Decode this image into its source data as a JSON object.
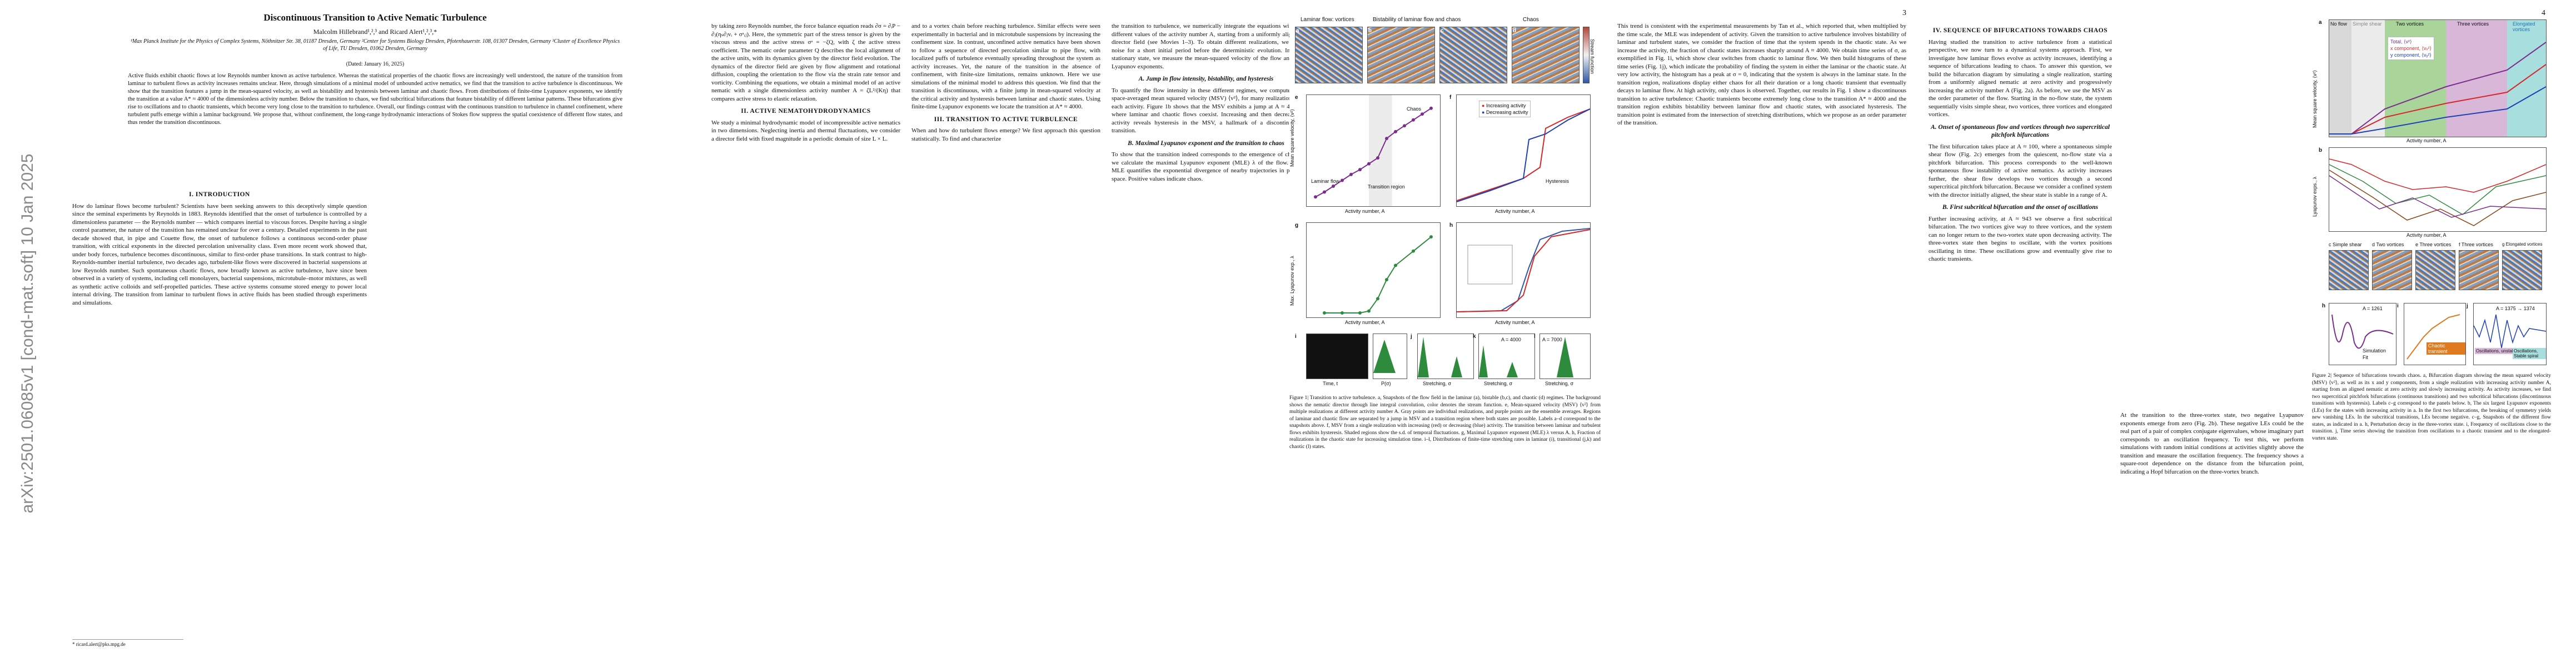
{
  "sidebar": {
    "arxiv_id": "arXiv:2501.06085v1  [cond-mat.soft]  10 Jan 2025"
  },
  "page1": {
    "title": "Discontinuous Transition to Active Nematic Turbulence",
    "authors": "Malcolm Hillebrand¹,²,³ and Ricard Alert¹,²,³,*",
    "affiliations": "¹Max Planck Institute for the Physics of Complex Systems, Nöthnitzer Str. 38, 01187 Dresden, Germany   ²Center for Systems Biology Dresden, Pfotenhauerstr. 108, 01307 Dresden, Germany   ³Cluster of Excellence Physics of Life, TU Dresden, 01062 Dresden, Germany",
    "date": "(Dated: January 16, 2025)",
    "abstract": "Active fluids exhibit chaotic flows at low Reynolds number known as active turbulence. Whereas the statistical properties of the chaotic flows are increasingly well understood, the nature of the transition from laminar to turbulent flows as activity increases remains unclear. Here, through simulations of a minimal model of unbounded active nematics, we find that the transition to active turbulence is discontinuous. We show that the transition features a jump in the mean-squared velocity, as well as bistability and hysteresis between laminar and chaotic flows. From distributions of finite-time Lyapunov exponents, we identify the transition at a value A* ≈ 4000 of the dimensionless activity number. Below the transition to chaos, we find subcritical bifurcations that feature bistability of different laminar patterns. These bifurcations give rise to oscillations and to chaotic transients, which become very long close to the transition to turbulence. Overall, our findings contrast with the continuous transition to turbulence in channel confinement, where turbulent puffs emerge within a laminar background. We propose that, without confinement, the long-range hydrodynamic interactions of Stokes flow suppress the spatial coexistence of different flow states, and thus render the transition discontinuous.",
    "sec_intro": "I.  INTRODUCTION",
    "col1_text": "How do laminar flows become turbulent? Scientists have been seeking answers to this deceptively simple question since the seminal experiments by Reynolds in 1883. Reynolds identified that the onset of turbulence is controlled by a dimensionless parameter — the Reynolds number — which compares inertial to viscous forces. Despite having a single control parameter, the nature of the transition has remained unclear for over a century. Detailed experiments in the past decade showed that, in pipe and Couette flow, the onset of turbulence follows a continuous second-order phase transition, with critical exponents in the directed percolation universality class. Even more recent work showed that, under body forces, turbulence becomes discontinuous, similar to first-order phase transitions. In stark contrast to high-Reynolds-number inertial turbulence, two decades ago, turbulent-like flows were discovered in bacterial suspensions at low Reynolds number. Such spontaneous chaotic flows, now broadly known as active turbulence, have since been observed in a variety of systems, including cell monolayers, bacterial suspensions, microtubule–motor mixtures, as well as synthetic active colloids and self-propelled particles. These active systems consume stored energy to power local internal driving. The transition from laminar to turbulent flows in active fluids has been studied through experiments and simulations."
  },
  "page2": {
    "page_number": "2",
    "col1_text": "by taking zero Reynolds number, the force balance equation reads ∂σ = ∂ᵢP − ∂ⱼ(ηₛ∂ⱼvᵢ + σᵃᵢⱼ). Here, the symmetric part of the stress tensor is given by the viscous stress and the active stress σᵃ = −ζQ, with ζ the active stress coefficient. The nematic order parameter Q describes the local alignment of the active units, with its dynamics given by the director field evolution. The dynamics of the director field are given by flow alignment and rotational diffusion, coupling the orientation to the flow via the strain rate tensor and vorticity. Combining the equations, we obtain a minimal model of an active nematic with a single dimensionless activity number A = ζL²/(Kη) that compares active stress to elastic relaxation.",
    "sec_model": "II.  ACTIVE NEMATOHYDRODYNAMICS",
    "col1_b": "We study a minimal hydrodynamic model of incompressible active nematics in two dimensions. Neglecting inertia and thermal fluctuations, we consider a director field with fixed magnitude in a periodic domain of size L × L.",
    "col2_text": "and to a vortex chain before reaching turbulence. Similar effects were seen experimentally in bacterial and in microtubule suspensions by increasing the confinement size. In contrast, unconfined active nematics have been shown to follow a sequence of directed percolation similar to pipe flow, with localized puffs of turbulence eventually spreading throughout the system as activity increases. Yet, the nature of the transition in the absence of confinement, with finite-size limitations, remains unknown. Here we use simulations of the minimal model to address this question. We find that the transition is discontinuous, with a finite jump in mean-squared velocity at the critical activity and hysteresis between laminar and chaotic states. Using finite-time Lyapunov exponents we locate the transition at A* ≈ 4000.",
    "col3_text": "the transition to turbulence, we numerically integrate the equations with at different values of the activity number A, starting from a uniformly aligned director field (see Movies 1–3). To obtain different realizations, we add noise for a short initial period before the deterministic evolution. In the stationary state, we measure the mean-squared velocity of the flow and its Lyapunov exponents.",
    "subsec_a": "A.  Jump in flow intensity, bistability, and hysteresis",
    "col3_b": "To quantify the flow intensity in these different regimes, we compute the space-averaged mean squared velocity (MSV) ⟨v²⟩, for many realizations at each activity. Figure 1b shows that the MSV exhibits a jump at A ≈ 4000, where laminar and chaotic flows coexist. Increasing and then decreasing activity reveals hysteresis in the MSV, a hallmark of a discontinuous transition.",
    "subsec_b": "B.  Maximal Lyapunov exponent and the transition to chaos",
    "col3_c": "To show that the transition indeed corresponds to the emergence of chaos, we calculate the maximal Lyapunov exponent (MLE) λ of the flow. The MLE quantifies the exponential divergence of nearby trajectories in phase space. Positive values indicate chaos.",
    "sec_iii": "III.  TRANSITION TO ACTIVE TURBULENCE",
    "col2_c": "When and how do turbulent flows emerge? We first approach this question statistically. To find and characterize"
  },
  "page3": {
    "page_number": "3",
    "panel_titles": [
      "Laminar flow: vortices",
      "Bistability of laminar flow and chaos",
      "Chaos"
    ],
    "panel_labels": [
      "a",
      "b",
      "c",
      "d",
      "e",
      "f",
      "g",
      "h",
      "i",
      "j",
      "k",
      "l"
    ],
    "stream_fn_label": "Stream function",
    "region_labels": [
      "Laminar flow",
      "Transition region",
      "Chaos",
      "Hysteresis"
    ],
    "legend_f": [
      "Increasing activity",
      "Decreasing activity"
    ],
    "ylabel_e": "Mean square velocity, ⟨v²⟩",
    "ylabel_g": "Max. Lyapunov exp., λ",
    "ylabel_h": "Fraction in chaotic state",
    "xlabel_activity": "Activity number, A",
    "xlabel_time": "Time, t",
    "xlabel_stretching": "Stretching, σ",
    "xlabel_ps": "P(σ)",
    "k_annot": "A = 4000",
    "l_annot": "A = 7000",
    "caption": "Figure 1| Transition to active turbulence. a, Snapshots of the flow field in the laminar (a), bistable (b,c), and chaotic (d) regimes. The background shows the nematic director through line integral convolution, color denotes the stream function. e, Mean-squared velocity (MSV) ⟨v²⟩ from multiple realizations at different activity number A. Gray points are individual realizations, and purple points are the ensemble averages. Regions of laminar and chaotic flow are separated by a jump in MSV and a transition region where both states are possible. Labels a–d correspond to the snapshots above. f, MSV from a single realization with increasing (red) or decreasing (blue) activity. The transition between laminar and turbulent flows exhibits hysteresis. Shaded regions show the s.d. of temporal fluctuations. g, Maximal Lyapunov exponent (MLE) λ versus A. h, Fraction of realizations in the chaotic state for increasing simulation time. i–l, Distributions of finite-time stretching rates in laminar (i), transitional (j,k) and chaotic (l) states."
  },
  "page3_text": {
    "col_text": "This trend is consistent with the experimental measurements by Tan et al., which reported that, when multiplied by the time scale, the MLE was independent of activity. Given the transition to active turbulence involves bistability of laminar and turbulent states, we consider the fraction of time that the system spends in the chaotic state. As we increase the activity, the fraction of chaotic states increases sharply around A ≈ 4000. We obtain time series of σ, as exemplified in Fig. 1i, which show clear switches from chaotic to laminar flow. We then build histograms of these time series (Fig. 1j), which indicate the probability of finding the system in either the laminar or the chaotic state. At very low activity, the histogram has a peak at σ = 0, indicating that the system is always in the laminar state. In the transition region, realizations display either chaos for all their duration or a long chaotic transient that eventually decays to laminar flow. At high activity, only chaos is observed. Together, our results in Fig. 1 show a discontinuous transition to active turbulence: Chaotic transients become extremely long close to the transition A* ≈ 4000 and the transition region exhibits bistability between laminar flow and chaotic states, with associated hysteresis. The transition point is estimated from the intersection of stretching distributions, which we propose as an order parameter of the transition."
  },
  "page4": {
    "page_number": "4",
    "sec_iv": "IV.  SEQUENCE OF BIFURCATIONS TOWARDS CHAOS",
    "col1_text": "Having studied the transition to active turbulence from a statistical perspective, we now turn to a dynamical systems approach. First, we investigate how laminar flows evolve as activity increases, identifying a sequence of bifurcations leading to chaos. To answer this question, we build the bifurcation diagram by simulating a single realization, starting from a uniformly aligned nematic at zero activity and progressively increasing the activity number A (Fig. 2a). As before, we use the MSV as the order parameter of the flow. Starting in the no-flow state, the system sequentially visits simple shear, two vortices, three vortices and elongated vortices.",
    "subsec_a": "A.  Onset of spontaneous flow and vortices through two supercritical pitchfork bifurcations",
    "col1_b": "The first bifurcation takes place at A ≈ 100, where a spontaneous simple shear flow (Fig. 2c) emerges from the quiescent, no-flow state via a pitchfork bifurcation. This process corresponds to the well-known spontaneous flow instability of active nematics. As activity increases further, the shear flow develops two vortices through a second supercritical pitchfork bifurcation. Because we consider a confined system with the director initially aligned, the shear state is stable in a range of A.",
    "subsec_b": "B.  First subcritical bifurcation and the onset of oscillations",
    "col1_c": "Further increasing activity, at A ≈ 943 we observe a first subcritical bifurcation. The two vortices give way to three vortices, and the system can no longer return to the two-vortex state upon decreasing activity. The three-vortex state then begins to oscillate, with the vortex positions oscillating in time. These oscillations grow and eventually give rise to chaotic transients.",
    "col2_text": "At the transition to the three-vortex state, two negative Lyapunov exponents emerge from zero (Fig. 2b). These negative LEs could be the real part of a pair of complex conjugate eigenvalues, whose imaginary part corresponds to an oscillation frequency. To test this, we perform simulations with random initial conditions at activities slightly above the transition and measure the oscillation frequency. The frequency shows a square-root dependence on the distance from the bifurcation point, indicating a Hopf bifurcation on the three-vortex branch.",
    "fig2_band_labels": [
      "No flow",
      "Simple shear",
      "Two vortices",
      "Three vortices",
      "Elongated vortices"
    ],
    "fig2a_legend": [
      "Total, ⟨v²⟩",
      "x component, ⟨vₓ²⟩",
      "y component, ⟨vᵧ²⟩"
    ],
    "fig2_ylabel_a": "Mean square velocity, ⟨v²⟩",
    "fig2_ylabel_b": "Lyapunov exps., λ",
    "fig2_xlabel": "Activity number, A",
    "fig2_snap_titles": [
      "c Simple shear",
      "d Two vortices",
      "e Three vortices",
      "f Three vortices",
      "g Elongated vortices"
    ],
    "fig2_h_annot": "A = 1261",
    "fig2_h_legend": [
      "Simulation",
      "Fit"
    ],
    "fig2_i_annot": "Chaotic transient",
    "fig2_j_annot": "A = 1375 → 1374",
    "fig2_osc_labels": [
      "Oscillations, unstable spiral",
      "Oscillations, Stable spiral"
    ],
    "caption": "Figure 2| Sequence of bifurcations towards chaos. a, Bifurcation diagram showing the mean squared velocity (MSV) ⟨v²⟩, as well as its x and y components, from a single realization with increasing activity number A, starting from an aligned nematic at zero activity and slowly increasing activity. As activity increases, we find two supercritical pitchfork bifurcations (continuous transitions) and two subcritical bifurcations (discontinuous transitions with hysteresis). Labels c–g correspond to the panels below. b, The six largest Lyapunov exponents (LEs) for the states with increasing activity in a. In the first two bifurcations, the breaking of symmetry yields new vanishing LEs. In the subcritical transitions, LEs become negative. c–g, Snapshots of the different flow states, as indicated in a. h, Perturbation decay in the three-vortex state. i, Frequency of oscillations close to the transition. j, Time series showing the transition from oscillations to a chaotic transient and to the elongated-vortex state."
  },
  "fig1_data": {
    "msv_x": [
      500,
      1000,
      1500,
      2000,
      2500,
      3000,
      3500,
      4000,
      4500,
      5000,
      5500,
      6000,
      6500,
      7000
    ],
    "msv_y": [
      0.5,
      1.0,
      1.6,
      2.2,
      2.8,
      3.3,
      3.9,
      4.5,
      6.5,
      7.2,
      7.8,
      8.4,
      9.0,
      9.6
    ],
    "mle_x": [
      1000,
      2000,
      3000,
      3500,
      4000,
      4500,
      5000,
      6000,
      7000
    ],
    "mle_y": [
      0,
      0,
      0,
      0.02,
      0.15,
      0.35,
      0.5,
      0.65,
      0.8
    ]
  },
  "colors": {
    "accent_purple": "#7b2d8e",
    "increase_red": "#d62728",
    "decrease_blue": "#1f3fb5",
    "chaos_green": "#2e8b3e",
    "band_gray": "#d9d9d9",
    "band_green": "#a9d59a",
    "band_purple": "#d8b7d8",
    "band_teal": "#a8dede"
  }
}
